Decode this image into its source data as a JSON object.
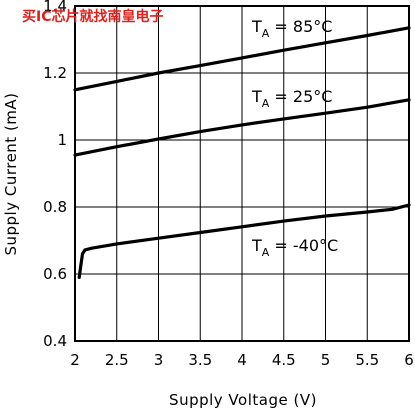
{
  "watermark": "买IC芯片就找南皇电子",
  "chart_data": {
    "type": "line",
    "title": "",
    "xlabel": "Supply Voltage (V)",
    "ylabel": "Supply Current (mA)",
    "xlim": [
      2,
      6
    ],
    "ylim": [
      0.4,
      1.4
    ],
    "x_ticks": [
      2,
      2.5,
      3,
      3.5,
      4,
      4.5,
      5,
      5.5,
      6
    ],
    "x_tick_labels": [
      "2",
      "2.5",
      "3",
      "3.5",
      "4",
      "4.5",
      "5",
      "5.5",
      "6"
    ],
    "y_ticks": [
      0.4,
      0.6,
      0.8,
      1,
      1.2,
      1.4
    ],
    "y_tick_labels": [
      "0.4",
      "0.6",
      "0.8",
      "1",
      "1.2",
      "1.4"
    ],
    "grid": true,
    "series": [
      {
        "name": "T_A = 85°C",
        "label_main": "T",
        "label_sub": "A",
        "label_rest": " = 85°C",
        "x": [
          2,
          2.5,
          3,
          3.5,
          4,
          4.5,
          5,
          5.5,
          6
        ],
        "y": [
          1.15,
          1.175,
          1.2,
          1.222,
          1.245,
          1.268,
          1.29,
          1.312,
          1.335
        ]
      },
      {
        "name": "T_A = 25°C",
        "label_main": "T",
        "label_sub": "A",
        "label_rest": " = 25°C",
        "x": [
          2,
          2.5,
          3,
          3.5,
          4,
          4.5,
          5,
          5.5,
          6
        ],
        "y": [
          0.955,
          0.98,
          1.003,
          1.025,
          1.045,
          1.063,
          1.08,
          1.098,
          1.12
        ]
      },
      {
        "name": "T_A = -40°C",
        "label_main": "T",
        "label_sub": "A",
        "label_rest": " = -40°C",
        "x": [
          2.05,
          2.07,
          2.09,
          2.12,
          2.2,
          2.5,
          3,
          3.5,
          4,
          4.5,
          5,
          5.5,
          5.8,
          6
        ],
        "y": [
          0.59,
          0.625,
          0.66,
          0.672,
          0.677,
          0.69,
          0.707,
          0.724,
          0.741,
          0.758,
          0.773,
          0.785,
          0.793,
          0.806
        ]
      }
    ]
  }
}
